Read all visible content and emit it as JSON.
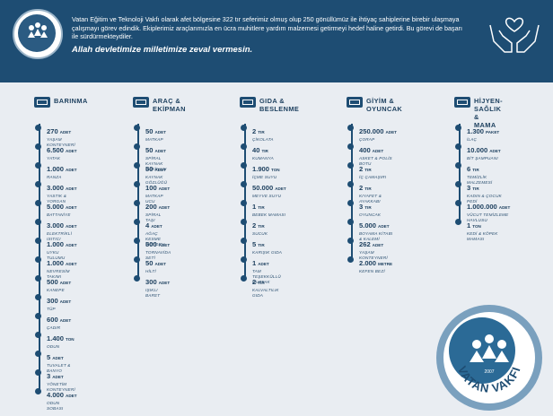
{
  "header": {
    "intro": "Vatan Eğitim ve Teknoloji Vakfı olarak afet bölgesine 322 tır seferimiz olmuş olup 250 gönüllümüz ile ihtiyaç sahiplerine  birebir ulaşmaya çalışmayı görev edindik. Ekiplerimiz araçlarımızla en ücra muhitlere yardım malzemesi getirmeyi hedef haline getirdi. Bu görevi de başarı ile sürdürmekteydiler.",
    "motto": "Allah devletimize milletimize zeval vermesin.",
    "logo_text": "VATAN VAKFI",
    "logo_year": "2007"
  },
  "columns": [
    {
      "title": "BARINMA",
      "items": [
        {
          "amount": "270",
          "unit": "ADET",
          "label": "YAŞAM KONTEYNERİ"
        },
        {
          "amount": "6.500",
          "unit": "ADET",
          "label": "YATAK"
        },
        {
          "amount": "1.000",
          "unit": "ADET",
          "label": "RANZA"
        },
        {
          "amount": "3.000",
          "unit": "ADET",
          "label": "YASTIK & YORGAN"
        },
        {
          "amount": "5.000",
          "unit": "ADET",
          "label": "BATTANİYE"
        },
        {
          "amount": "3.000",
          "unit": "ADET",
          "label": "ELEKTRİKLİ ISITICI"
        },
        {
          "amount": "1.000",
          "unit": "ADET",
          "label": "UYKU TULUMU"
        },
        {
          "amount": "1.000",
          "unit": "ADET",
          "label": "NEVRESİM TAKIMI"
        },
        {
          "amount": "500",
          "unit": "ADET",
          "label": "KANEPE"
        },
        {
          "amount": "300",
          "unit": "ADET",
          "label": "TÜP"
        },
        {
          "amount": "600",
          "unit": "ADET",
          "label": "ÇADIR"
        },
        {
          "amount": "1.400",
          "unit": "TON",
          "label": "ODUN"
        },
        {
          "amount": "5",
          "unit": "ADET",
          "label": "TUVALET & BANYO"
        },
        {
          "amount": "3",
          "unit": "ADET",
          "label": "YÖNETİM KONTEYNERİ"
        },
        {
          "amount": "4.000",
          "unit": "ADET",
          "label": "ODUN SOBASI"
        }
      ]
    },
    {
      "title": "ARAÇ &\nEKİPMAN",
      "items": [
        {
          "amount": "50",
          "unit": "ADET",
          "label": "MATKAP"
        },
        {
          "amount": "50",
          "unit": "ADET",
          "label": "SPİRAL KAYNAK MAKİNASI"
        },
        {
          "amount": "50",
          "unit": "ADET",
          "label": "KAYNAK GÖZLÜĞÜ"
        },
        {
          "amount": "100",
          "unit": "ADET",
          "label": "MATKAP UCU"
        },
        {
          "amount": "200",
          "unit": "ADET",
          "label": "SPİRAL TAŞI"
        },
        {
          "amount": "4",
          "unit": "ADET",
          "label": "AĞAÇ KESME MOTORU"
        },
        {
          "amount": "500",
          "unit": "ADET",
          "label": "TORNAVİDA SETİ"
        },
        {
          "amount": "50",
          "unit": "ADET",
          "label": "HİLTİ"
        },
        {
          "amount": "300",
          "unit": "ADET",
          "label": "IŞIKLI BARET"
        }
      ]
    },
    {
      "title": "GIDA &\nBESLENME",
      "items": [
        {
          "amount": "2",
          "unit": "TIR",
          "label": "ÇİKOLATA"
        },
        {
          "amount": "40",
          "unit": "TIR",
          "label": "KUMANYA"
        },
        {
          "amount": "1.900",
          "unit": "TON",
          "label": "İÇME SUYU"
        },
        {
          "amount": "50.000",
          "unit": "ADET",
          "label": "MEYVE SUYU"
        },
        {
          "amount": "1",
          "unit": "TIR",
          "label": "BEBEK MAMASI"
        },
        {
          "amount": "2",
          "unit": "TIR",
          "label": "SUCUK"
        },
        {
          "amount": "5",
          "unit": "TIR",
          "label": "KARIŞIK GIDA"
        },
        {
          "amount": "1",
          "unit": "ADET",
          "label": "TAM TEŞEKKÜLLÜ MUTFAK"
        },
        {
          "amount": "2",
          "unit": "TIR",
          "label": "KALVALTILIK GIDA"
        }
      ]
    },
    {
      "title": "GİYİM &\nOYUNCAK",
      "items": [
        {
          "amount": "250.000",
          "unit": "ADET",
          "label": "ÇORAP"
        },
        {
          "amount": "400",
          "unit": "ADET",
          "label": "ASKET & POLİS BOTU"
        },
        {
          "amount": "2",
          "unit": "TIR",
          "label": "İÇ ÇAMAŞIRI"
        },
        {
          "amount": "2",
          "unit": "TIR",
          "label": "KIYAFET & AYAKKABI"
        },
        {
          "amount": "3",
          "unit": "TIR",
          "label": "OYUNCAK"
        },
        {
          "amount": "5.000",
          "unit": "ADET",
          "label": "BOYAMA KİTABI & KALEMİ"
        },
        {
          "amount": "262",
          "unit": "ADET",
          "label": "YAŞAM KONTEYNERİ"
        },
        {
          "amount": "2.000",
          "unit": "METRE",
          "label": "KEFEN BEZİ"
        }
      ]
    },
    {
      "title": "HİJYEN-SAĞLIK\n& MAMA",
      "items": [
        {
          "amount": "1.300",
          "unit": "PAKET",
          "label": "İLAÇ"
        },
        {
          "amount": "10.000",
          "unit": "ADET",
          "label": "BİT ŞAMPUANI"
        },
        {
          "amount": "6",
          "unit": "TIR",
          "label": "TEMİZLİK MALZEMESİ"
        },
        {
          "amount": "3",
          "unit": "TIR",
          "label": "KADIN & ÇOCUK PEDİ"
        },
        {
          "amount": "1.000.000",
          "unit": "ADET",
          "label": "VÜCUT TEMİZLEME HAVLUSU"
        },
        {
          "amount": "1",
          "unit": "TON",
          "label": "KEDİ & KÖPEK MAMASI"
        }
      ]
    }
  ],
  "colors": {
    "navy": "#1e4d73",
    "bg": "#e9edf2",
    "ring": "#7aa0be"
  }
}
